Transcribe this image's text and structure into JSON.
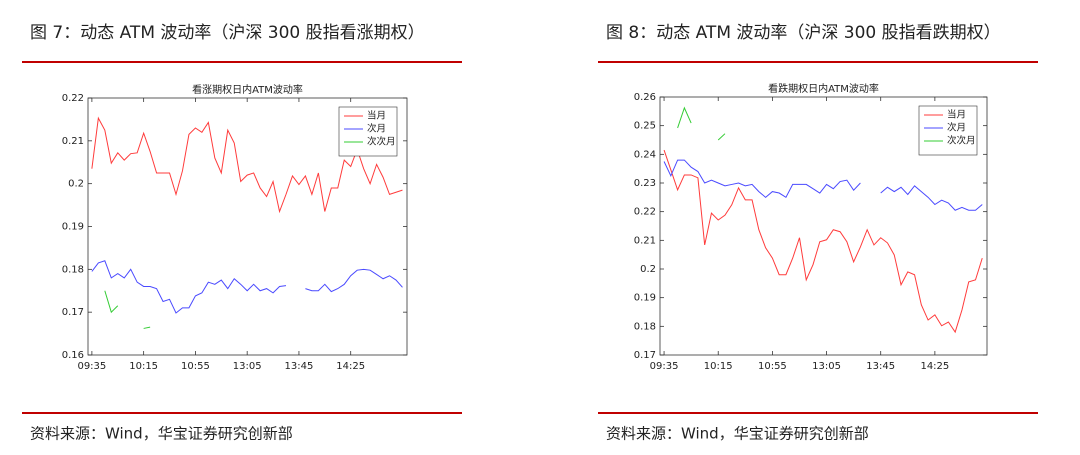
{
  "figures": [
    {
      "caption": "图 7：动态 ATM 波动率（沪深 300 股指看涨期权）",
      "source": "资料来源：Wind，华宝证券研究创新部"
    },
    {
      "caption": "图 8：动态 ATM 波动率（沪深 300 股指看跌期权）",
      "source": "资料来源：Wind，华宝证券研究创新部"
    }
  ],
  "chart_data": [
    {
      "type": "line",
      "title": "看涨期权日内ATM波动率",
      "legend": "top-right",
      "categories": [
        "09:35",
        null,
        null,
        null,
        null,
        null,
        null,
        null,
        "10:15",
        null,
        null,
        null,
        null,
        null,
        null,
        null,
        "10:55",
        null,
        null,
        null,
        null,
        null,
        null,
        null,
        "13:05",
        null,
        null,
        null,
        null,
        null,
        null,
        null,
        "13:45",
        null,
        null,
        null,
        null,
        null,
        null,
        null,
        "14:25",
        null,
        null,
        null,
        null,
        null,
        null,
        null,
        null
      ],
      "ylim": [
        0.16,
        0.22
      ],
      "yticks": [
        0.16,
        0.17,
        0.18,
        0.19,
        0.2,
        0.21,
        0.22
      ],
      "series": [
        {
          "name": "当月",
          "color": "#ff3b3b",
          "values": [
            0.2035,
            0.2153,
            0.2125,
            0.2048,
            0.2072,
            0.2055,
            0.207,
            0.2072,
            0.2118,
            0.2075,
            0.2025,
            0.2025,
            0.2025,
            0.1975,
            0.203,
            0.2115,
            0.213,
            0.212,
            0.2143,
            0.206,
            0.2025,
            0.2125,
            0.2095,
            0.2005,
            0.202,
            0.2025,
            0.199,
            0.197,
            0.2005,
            0.1935,
            0.1975,
            0.2018,
            0.1998,
            0.2018,
            0.1975,
            0.2025,
            0.1935,
            0.199,
            0.199,
            0.2055,
            0.204,
            0.208,
            0.2035,
            0.2,
            0.2045,
            0.2015,
            0.1975,
            0.198,
            0.1985
          ]
        },
        {
          "name": "次月",
          "color": "#4a4aff",
          "values": [
            0.1795,
            0.1815,
            0.182,
            0.178,
            0.179,
            0.178,
            0.18,
            0.177,
            0.176,
            0.176,
            0.1755,
            0.1725,
            0.173,
            0.1698,
            0.171,
            0.171,
            0.1738,
            0.1745,
            0.177,
            0.1765,
            0.1775,
            0.1755,
            0.1778,
            0.1765,
            0.175,
            0.1765,
            0.175,
            0.1755,
            0.1745,
            0.176,
            0.1762,
            null,
            null,
            0.1755,
            0.175,
            0.175,
            0.1765,
            0.1748,
            0.1755,
            0.1765,
            0.1785,
            0.1798,
            0.18,
            0.1798,
            0.1788,
            0.1778,
            0.1785,
            0.1775,
            0.1758
          ]
        },
        {
          "name": "次次月",
          "color": "#33cc33",
          "values": [
            null,
            null,
            0.175,
            0.17,
            0.1715,
            null,
            null,
            null,
            0.1662,
            0.1665,
            null,
            null,
            null,
            null,
            null,
            null,
            null,
            null,
            null,
            null,
            null,
            null,
            null,
            null,
            null,
            null,
            null,
            null,
            null,
            null,
            null,
            null,
            null,
            null,
            null,
            null,
            null,
            null,
            null,
            null,
            null,
            null,
            null,
            null,
            null,
            null,
            null,
            null,
            null
          ]
        }
      ]
    },
    {
      "type": "line",
      "title": "看跌期权日内ATM波动率",
      "legend": "top-right",
      "categories": [
        "09:35",
        null,
        null,
        null,
        null,
        null,
        null,
        null,
        "10:15",
        null,
        null,
        null,
        null,
        null,
        null,
        null,
        "10:55",
        null,
        null,
        null,
        null,
        null,
        null,
        null,
        "13:05",
        null,
        null,
        null,
        null,
        null,
        null,
        null,
        "13:45",
        null,
        null,
        null,
        null,
        null,
        null,
        null,
        "14:25",
        null,
        null,
        null,
        null,
        null,
        null,
        null
      ],
      "ylim": [
        0.17,
        0.26
      ],
      "yticks": [
        0.17,
        0.18,
        0.19,
        0.2,
        0.21,
        0.22,
        0.23,
        0.24,
        0.25,
        0.26
      ],
      "series": [
        {
          "name": "当月",
          "color": "#ff3b3b",
          "values": [
            0.2415,
            0.2346,
            0.2276,
            0.2328,
            0.2328,
            0.2318,
            0.2084,
            0.2195,
            0.2171,
            0.2188,
            0.2224,
            0.2283,
            0.2241,
            0.2241,
            0.2137,
            0.2074,
            0.2038,
            0.198,
            0.198,
            0.2038,
            0.2109,
            0.1962,
            0.2015,
            0.2095,
            0.2102,
            0.2137,
            0.213,
            0.2095,
            0.2025,
            0.2077,
            0.2137,
            0.2084,
            0.2109,
            0.2091,
            0.2049,
            0.1945,
            0.199,
            0.198,
            0.1875,
            0.1822,
            0.184,
            0.1802,
            0.1815,
            0.178,
            0.1857,
            0.1955,
            0.1962,
            0.2038
          ]
        },
        {
          "name": "次月",
          "color": "#4a4aff",
          "values": [
            0.2375,
            0.2325,
            0.238,
            0.238,
            0.2355,
            0.234,
            0.23,
            0.231,
            0.23,
            0.229,
            0.2295,
            0.23,
            0.229,
            0.2295,
            0.227,
            0.225,
            0.227,
            0.2265,
            0.225,
            0.2295,
            0.2295,
            0.2295,
            0.228,
            0.2265,
            0.2295,
            0.228,
            0.2305,
            0.231,
            0.2275,
            0.23,
            null,
            null,
            0.2265,
            0.2285,
            0.227,
            0.2285,
            0.226,
            0.229,
            0.227,
            0.225,
            0.2225,
            0.224,
            0.223,
            0.2205,
            0.2215,
            0.2205,
            0.2205,
            0.2225
          ]
        },
        {
          "name": "次次月",
          "color": "#33cc33",
          "values": [
            null,
            null,
            0.2492,
            0.2562,
            0.2509,
            null,
            null,
            null,
            0.245,
            0.2472,
            null,
            null,
            null,
            null,
            null,
            null,
            null,
            null,
            null,
            null,
            null,
            null,
            null,
            null,
            null,
            null,
            null,
            null,
            null,
            null,
            null,
            null,
            null,
            null,
            null,
            null,
            null,
            null,
            null,
            null,
            null,
            null,
            null,
            null,
            null,
            null,
            null,
            null
          ]
        }
      ]
    }
  ]
}
